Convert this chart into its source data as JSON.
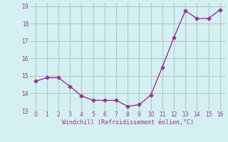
{
  "x": [
    0,
    1,
    2,
    3,
    4,
    5,
    6,
    7,
    8,
    9,
    10,
    11,
    12,
    13,
    14,
    15,
    16
  ],
  "y": [
    14.7,
    14.9,
    14.9,
    14.4,
    13.85,
    13.6,
    13.6,
    13.6,
    13.25,
    13.35,
    13.9,
    15.5,
    17.2,
    18.75,
    18.3,
    18.3,
    18.8
  ],
  "line_color": "#993399",
  "marker": "D",
  "marker_size": 2.5,
  "bg_color": "#d4f0f0",
  "grid_color": "#b0c8c8",
  "xlabel": "Windchill (Refroidissement éolien,°C)",
  "xlabel_color": "#993399",
  "tick_color": "#993399",
  "ylim": [
    13.0,
    19.2
  ],
  "xlim": [
    -0.5,
    16.5
  ],
  "yticks": [
    13,
    14,
    15,
    16,
    17,
    18,
    19
  ],
  "xticks": [
    0,
    1,
    2,
    3,
    4,
    5,
    6,
    7,
    8,
    9,
    10,
    11,
    12,
    13,
    14,
    15,
    16
  ]
}
